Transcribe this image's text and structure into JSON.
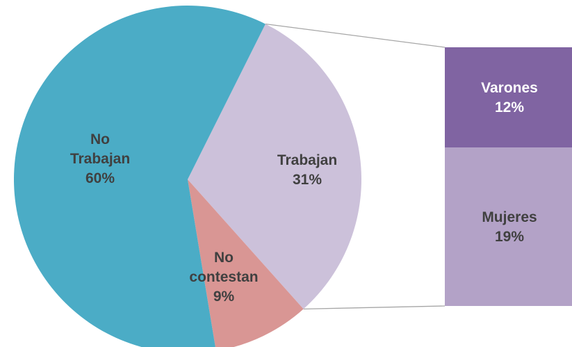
{
  "chart_data": {
    "type": "pie",
    "variant": "bar-of-pie",
    "slices": [
      {
        "label_lines": [
          "No",
          "Trabajan",
          "60%"
        ],
        "value": 60,
        "color": "#4bacc6"
      },
      {
        "label_lines": [
          "Trabajan",
          "31%"
        ],
        "value": 31,
        "color": "#ccc1da"
      },
      {
        "label_lines": [
          "No",
          "contestan",
          "9%"
        ],
        "value": 9,
        "color": "#d99694"
      }
    ],
    "breakdown": {
      "of_slice": "Trabajan",
      "segments": [
        {
          "label_lines": [
            "Varones",
            "12%"
          ],
          "value": 12,
          "color": "#8064a2"
        },
        {
          "label_lines": [
            "Mujeres",
            "19%"
          ],
          "value": 19,
          "color": "#b3a2c7"
        }
      ]
    },
    "legend": "none"
  }
}
